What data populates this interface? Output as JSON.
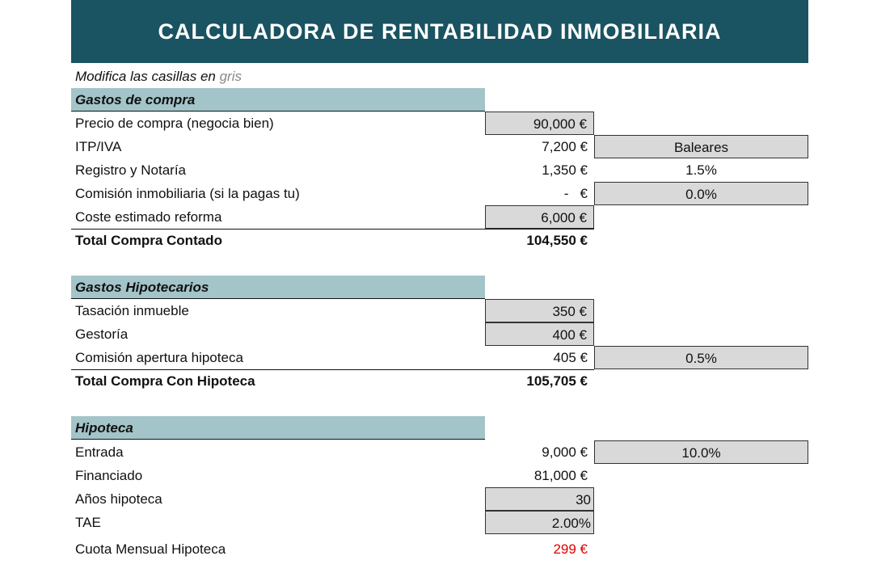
{
  "header": {
    "title": "CALCULADORA DE RENTABILIDAD INMOBILIARIA"
  },
  "note": {
    "text": "Modifica las casillas en",
    "highlight": "gris"
  },
  "sections": [
    {
      "title": "Gastos de compra",
      "rows": [
        {
          "label": "Precio de compra (negocia bien)",
          "value": "90,000 €"
        },
        {
          "label": "ITP/IVA",
          "value": "7,200 €",
          "extra": "Baleares"
        },
        {
          "label": "Registro y Notaría",
          "value": "1,350 €",
          "extra": "1.5%"
        },
        {
          "label": "Comisión inmobiliaria (si la pagas tu)",
          "value": "-   €",
          "extra": "0.0%"
        },
        {
          "label": "Coste estimado reforma",
          "value": "6,000 €"
        }
      ],
      "total": {
        "label": "Total Compra Contado",
        "value": "104,550 €"
      }
    },
    {
      "title": "Gastos Hipotecarios",
      "rows": [
        {
          "label": "Tasación inmueble",
          "value": "350 €"
        },
        {
          "label": "Gestoría",
          "value": "400 €"
        },
        {
          "label": "Comisión apertura hipoteca",
          "value": "405 €",
          "extra": "0.5%"
        }
      ],
      "total": {
        "label": "Total Compra Con Hipoteca",
        "value": "105,705 €"
      }
    },
    {
      "title": "Hipoteca",
      "rows": [
        {
          "label": "Entrada",
          "value": "9,000 €",
          "extra": "10.0%"
        },
        {
          "label": "Financiado",
          "value": "81,000 €"
        },
        {
          "label": "Años hipoteca",
          "value": "30"
        },
        {
          "label": "TAE",
          "value": "2.00%"
        },
        {
          "label": "Cuota Mensual Hipoteca",
          "value": "299 €"
        }
      ]
    }
  ]
}
